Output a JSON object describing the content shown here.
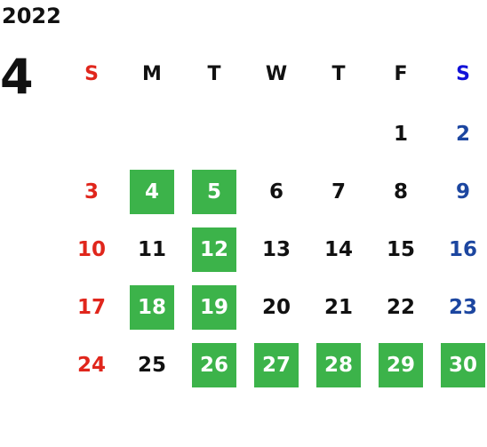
{
  "year": "2022",
  "month": "4",
  "weekdays": [
    "S",
    "M",
    "T",
    "W",
    "T",
    "F",
    "S"
  ],
  "weeks": [
    [
      "",
      "",
      "",
      "",
      "",
      "1",
      "2"
    ],
    [
      "3",
      "4",
      "5",
      "6",
      "7",
      "8",
      "9"
    ],
    [
      "10",
      "11",
      "12",
      "13",
      "14",
      "15",
      "16"
    ],
    [
      "17",
      "18",
      "19",
      "20",
      "21",
      "22",
      "23"
    ],
    [
      "24",
      "25",
      "26",
      "27",
      "28",
      "29",
      "30"
    ]
  ],
  "highlighted_days": [
    "4",
    "5",
    "12",
    "18",
    "19",
    "26",
    "27",
    "28",
    "29",
    "30"
  ],
  "colors": {
    "highlight": "#3cb34a",
    "sunday": "#e0261c",
    "saturday": "#1c46a0",
    "saturday_header": "#1212d8"
  }
}
